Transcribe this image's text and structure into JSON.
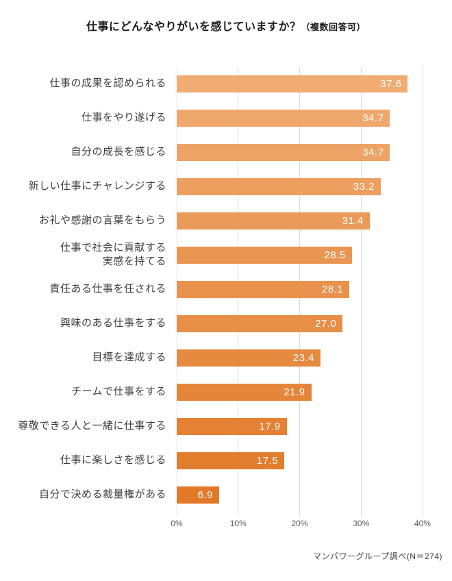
{
  "title": {
    "main": "仕事にどんなやりがいを感じていますか？",
    "note": "（複数回答可）"
  },
  "footer": {
    "source": "マンパワーグループ調べ(N＝274)"
  },
  "chart_data": {
    "type": "bar",
    "orientation": "horizontal",
    "title": "仕事にどんなやりがいを感じていますか？（複数回答可）",
    "categories": [
      "仕事の成果を認められる",
      "仕事をやり遂げる",
      "自分の成長を感じる",
      "新しい仕事にチャレンジする",
      "お礼や感謝の言葉をもらう",
      "仕事で社会に貢献する\n実感を持てる",
      "責任ある仕事を任される",
      "興味のある仕事をする",
      "目標を達成する",
      "チームで仕事をする",
      "尊敬できる人と一緒に仕事する",
      "仕事に楽しさを感じる",
      "自分で決める裁量権がある"
    ],
    "values": [
      37.6,
      34.7,
      34.7,
      33.2,
      31.4,
      28.5,
      28.1,
      27.0,
      23.4,
      21.9,
      17.9,
      17.5,
      6.9
    ],
    "value_labels": [
      "37.6",
      "34.7",
      "34.7",
      "33.2",
      "31.4",
      "28.5",
      "28.1",
      "27.0",
      "23.4",
      "21.9",
      "17.9",
      "17.5",
      "6.9"
    ],
    "bar_colors": [
      "#F0AC72",
      "#EFA86C",
      "#EDA366",
      "#EC9F5F",
      "#EB9B59",
      "#EA9653",
      "#E9924D",
      "#E78E47",
      "#E68A40",
      "#E5853A",
      "#E48134",
      "#E37D2E",
      "#E27928"
    ],
    "value_label_color": "#FFFFFF",
    "xlabel": "",
    "ylabel": "",
    "xlim": [
      0,
      40
    ],
    "axis_ticks": [
      "0%",
      "10%",
      "20%",
      "30%",
      "40%"
    ],
    "grid": true,
    "gridline_color": "#D9D9D9",
    "legend": "none"
  }
}
